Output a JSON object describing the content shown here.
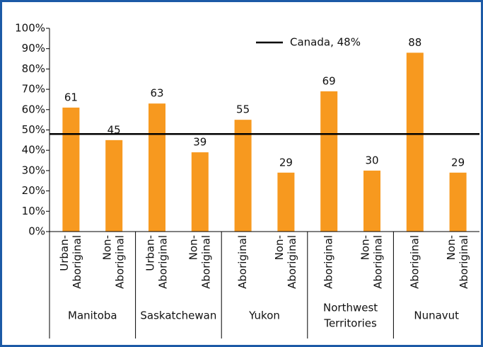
{
  "chart_data": {
    "type": "bar",
    "categories": [
      [
        "Urban-",
        "Aboriginal"
      ],
      [
        "Non-",
        "Aboriginal"
      ],
      [
        "Urban-",
        "Aboriginal"
      ],
      [
        "Non-",
        "Aboriginal"
      ],
      [
        "Aboriginal"
      ],
      [
        "Non-",
        "Aboriginal"
      ],
      [
        "Aboriginal"
      ],
      [
        "Non-",
        "Aboriginal"
      ],
      [
        "Aboriginal"
      ],
      [
        "Non-",
        "Aboriginal"
      ]
    ],
    "groups": [
      [
        "Manitoba"
      ],
      [
        "Saskatchewan"
      ],
      [
        "Yukon"
      ],
      [
        "Northwest",
        "Territories"
      ],
      [
        "Nunavut"
      ]
    ],
    "values": [
      61,
      45,
      63,
      39,
      55,
      29,
      69,
      30,
      88,
      29
    ],
    "color": "#f7991f",
    "reference_line": {
      "value": 48,
      "label": "Canada, 48%",
      "color": "#000000"
    },
    "ylim": [
      0,
      100
    ],
    "yticks": [
      {
        "value": 0,
        "label": "0%"
      },
      {
        "value": 10,
        "label": "10%"
      },
      {
        "value": 20,
        "label": "20%"
      },
      {
        "value": 30,
        "label": "30%"
      },
      {
        "value": 40,
        "label": "40%"
      },
      {
        "value": 50,
        "label": "50%"
      },
      {
        "value": 60,
        "label": "60%"
      },
      {
        "value": 70,
        "label": "70%"
      },
      {
        "value": 80,
        "label": "80%"
      },
      {
        "value": 90,
        "label": "90%"
      },
      {
        "value": 100,
        "label": "100%"
      }
    ]
  }
}
